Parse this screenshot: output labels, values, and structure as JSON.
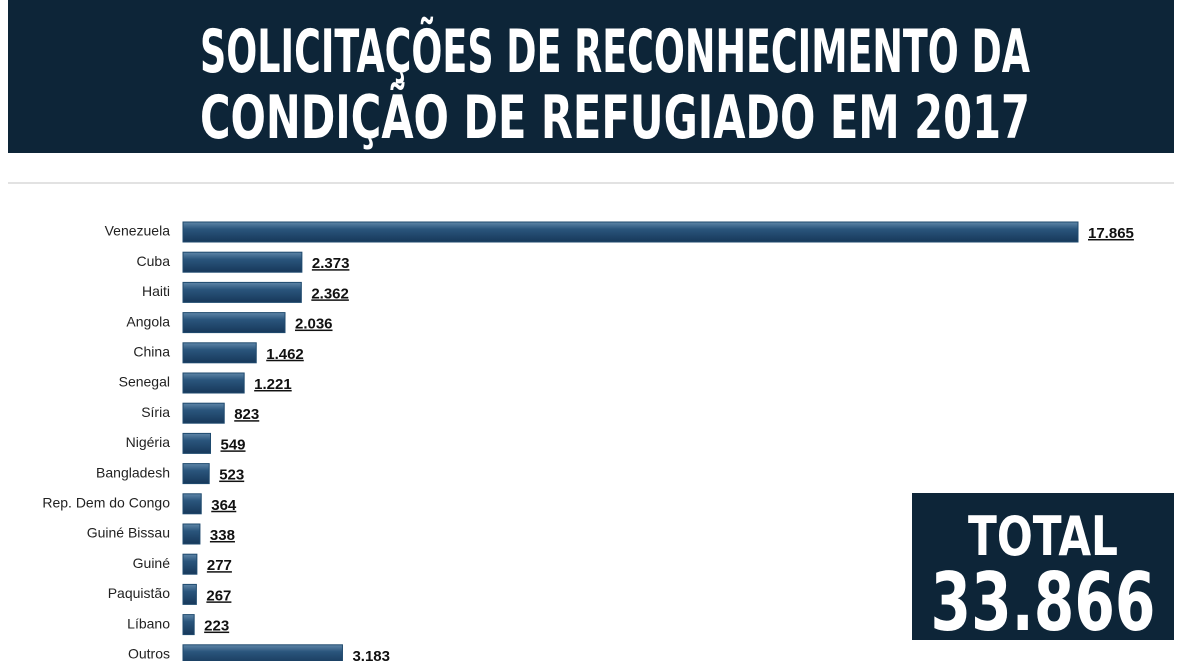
{
  "chart_data": {
    "type": "barh",
    "title": [
      "SOLICITAÇÕES DE RECONHECIMENTO DA",
      "CONDIÇÃO DE REFUGIADO EM 2017"
    ],
    "categories": [
      "Venezuela",
      "Cuba",
      "Haiti",
      "Angola",
      "China",
      "Senegal",
      "Síria",
      "Nigéria",
      "Bangladesh",
      "Rep. Dem do Congo",
      "Guiné Bissau",
      "Guiné",
      "Paquistão",
      "Líbano",
      "Outros"
    ],
    "values": [
      17865,
      2373,
      2362,
      2036,
      1462,
      1221,
      823,
      549,
      523,
      364,
      338,
      277,
      267,
      223,
      3183
    ],
    "value_labels": [
      "17.865",
      "2.373",
      "2.362",
      "2.036",
      "1.462",
      "1.221",
      "823",
      "549",
      "523",
      "364",
      "338",
      "277",
      "267",
      "223",
      "3.183"
    ],
    "color": "#1f4a6e",
    "xlim": [
      0,
      17865
    ],
    "total_title": "TOTAL",
    "total": "33.866"
  }
}
